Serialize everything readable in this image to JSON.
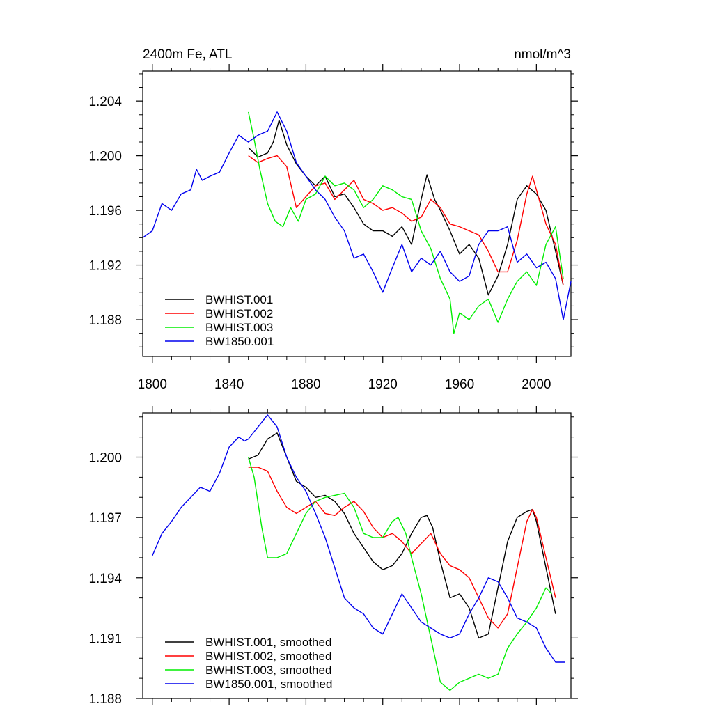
{
  "chart_data": [
    {
      "type": "line",
      "title": "2400m Fe, ATL",
      "units_label": "nmol/m^3",
      "xlim": [
        1795,
        2018
      ],
      "ylim": [
        1.1853,
        1.2062
      ],
      "x_ticks": [
        1800,
        1840,
        1880,
        1920,
        1960,
        2000
      ],
      "x_tick_labels": [
        "1800",
        "1840",
        "1880",
        "1920",
        "1960",
        "2000"
      ],
      "y_ticks": [
        1.188,
        1.192,
        1.196,
        1.2,
        1.204
      ],
      "y_tick_labels": [
        "1.188",
        "1.192",
        "1.196",
        "1.200",
        "1.204"
      ],
      "legend_placement": "bottom-left",
      "series": [
        {
          "name": "BWHIST.001",
          "color": "#000000",
          "x": [
            1850,
            1855,
            1860,
            1863,
            1866,
            1870,
            1875,
            1880,
            1885,
            1890,
            1895,
            1900,
            1905,
            1910,
            1915,
            1920,
            1925,
            1930,
            1935,
            1940,
            1943,
            1947,
            1950,
            1955,
            1960,
            1965,
            1970,
            1975,
            1980,
            1985,
            1990,
            1995,
            2000,
            2005,
            2010,
            2014
          ],
          "y": [
            1.2006,
            1.1999,
            1.2002,
            1.201,
            1.2026,
            1.2008,
            1.1994,
            1.1985,
            1.1978,
            1.1985,
            1.197,
            1.1972,
            1.1962,
            1.195,
            1.1945,
            1.1945,
            1.1941,
            1.1948,
            1.1935,
            1.1968,
            1.1986,
            1.1968,
            1.196,
            1.1945,
            1.1928,
            1.1935,
            1.1925,
            1.1898,
            1.1912,
            1.1935,
            1.1968,
            1.1978,
            1.1972,
            1.196,
            1.193,
            1.1905
          ]
        },
        {
          "name": "BWHIST.002",
          "color": "#ff0000",
          "x": [
            1850,
            1855,
            1860,
            1865,
            1870,
            1875,
            1880,
            1885,
            1890,
            1895,
            1900,
            1905,
            1910,
            1915,
            1920,
            1925,
            1930,
            1935,
            1940,
            1945,
            1950,
            1955,
            1960,
            1965,
            1970,
            1975,
            1980,
            1985,
            1990,
            1995,
            1998,
            2000,
            2005,
            2010,
            2014
          ],
          "y": [
            1.2,
            1.1995,
            1.1998,
            1.2,
            1.1992,
            1.1962,
            1.197,
            1.1978,
            1.198,
            1.1968,
            1.1975,
            1.1982,
            1.1968,
            1.1965,
            1.196,
            1.1962,
            1.1958,
            1.1952,
            1.1955,
            1.1968,
            1.1962,
            1.195,
            1.1948,
            1.1945,
            1.1942,
            1.193,
            1.1915,
            1.1915,
            1.1938,
            1.1972,
            1.1985,
            1.1975,
            1.195,
            1.1935,
            1.1905
          ]
        },
        {
          "name": "BWHIST.003",
          "color": "#00ee00",
          "x": [
            1850,
            1853,
            1856,
            1860,
            1864,
            1868,
            1872,
            1876,
            1880,
            1885,
            1890,
            1895,
            1900,
            1905,
            1910,
            1915,
            1920,
            1925,
            1930,
            1935,
            1940,
            1945,
            1950,
            1955,
            1957,
            1960,
            1965,
            1970,
            1975,
            1980,
            1985,
            1990,
            1995,
            2000,
            2005,
            2010,
            2014
          ],
          "y": [
            1.2032,
            1.2012,
            1.199,
            1.1965,
            1.1952,
            1.1948,
            1.1962,
            1.1952,
            1.1968,
            1.1972,
            1.1985,
            1.1978,
            1.198,
            1.1975,
            1.1962,
            1.1968,
            1.1978,
            1.1975,
            1.197,
            1.1968,
            1.1945,
            1.1932,
            1.191,
            1.1895,
            1.187,
            1.1885,
            1.188,
            1.189,
            1.1895,
            1.1878,
            1.1895,
            1.1908,
            1.1915,
            1.1905,
            1.1935,
            1.1948,
            1.191
          ]
        },
        {
          "name": "BW1850.001",
          "color": "#0000ee",
          "x": [
            1795,
            1800,
            1805,
            1810,
            1815,
            1820,
            1823,
            1826,
            1830,
            1835,
            1840,
            1845,
            1850,
            1855,
            1860,
            1865,
            1870,
            1875,
            1880,
            1885,
            1890,
            1895,
            1900,
            1905,
            1910,
            1915,
            1920,
            1925,
            1930,
            1935,
            1940,
            1945,
            1950,
            1955,
            1960,
            1965,
            1970,
            1975,
            1980,
            1985,
            1990,
            1995,
            2000,
            2005,
            2010,
            2014,
            2018
          ],
          "y": [
            1.194,
            1.1945,
            1.1965,
            1.196,
            1.1972,
            1.1975,
            1.199,
            1.1982,
            1.1985,
            1.1988,
            1.2002,
            1.2015,
            1.201,
            1.2015,
            1.2018,
            1.2032,
            1.2018,
            1.1995,
            1.1985,
            1.1975,
            1.1968,
            1.1955,
            1.1945,
            1.1925,
            1.1928,
            1.1915,
            1.19,
            1.1918,
            1.1935,
            1.1915,
            1.1925,
            1.192,
            1.193,
            1.1915,
            1.1908,
            1.1912,
            1.1935,
            1.1945,
            1.1945,
            1.1948,
            1.1922,
            1.1928,
            1.1918,
            1.1922,
            1.191,
            1.188,
            1.1908
          ]
        }
      ]
    },
    {
      "type": "line",
      "xlim": [
        1795,
        2018
      ],
      "ylim": [
        1.188,
        1.2022
      ],
      "x_ticks": [
        1800,
        1840,
        1880,
        1920,
        1960,
        2000
      ],
      "y_ticks": [
        1.188,
        1.191,
        1.194,
        1.197,
        1.2
      ],
      "y_tick_labels": [
        "1.188",
        "1.191",
        "1.194",
        "1.197",
        "1.200"
      ],
      "legend_placement": "bottom-left",
      "series": [
        {
          "name": "BWHIST.001, smoothed",
          "color": "#000000",
          "x": [
            1850,
            1855,
            1860,
            1865,
            1870,
            1875,
            1880,
            1885,
            1890,
            1895,
            1900,
            1905,
            1910,
            1915,
            1920,
            1925,
            1930,
            1935,
            1940,
            1943,
            1946,
            1950,
            1955,
            1960,
            1965,
            1970,
            1975,
            1980,
            1985,
            1990,
            1995,
            1998,
            2000,
            2005,
            2010
          ],
          "y": [
            1.1999,
            1.2001,
            1.2009,
            1.2012,
            1.2,
            1.1988,
            1.1985,
            1.198,
            1.1981,
            1.1978,
            1.1972,
            1.1962,
            1.1955,
            1.1948,
            1.1944,
            1.1946,
            1.1952,
            1.1962,
            1.197,
            1.1971,
            1.1965,
            1.1948,
            1.193,
            1.1932,
            1.1925,
            1.191,
            1.1912,
            1.1935,
            1.1958,
            1.197,
            1.1973,
            1.1974,
            1.1968,
            1.1945,
            1.1922
          ]
        },
        {
          "name": "BWHIST.002, smoothed",
          "color": "#ff0000",
          "x": [
            1850,
            1855,
            1860,
            1865,
            1870,
            1875,
            1880,
            1885,
            1890,
            1895,
            1900,
            1905,
            1910,
            1915,
            1920,
            1925,
            1930,
            1935,
            1940,
            1945,
            1950,
            1955,
            1960,
            1965,
            1970,
            1975,
            1980,
            1985,
            1990,
            1995,
            1998,
            2000,
            2005,
            2010
          ],
          "y": [
            1.1995,
            1.1995,
            1.1993,
            1.1983,
            1.1975,
            1.1972,
            1.1975,
            1.1978,
            1.1972,
            1.1971,
            1.1975,
            1.1978,
            1.1973,
            1.1965,
            1.196,
            1.1962,
            1.1958,
            1.1952,
            1.1957,
            1.1962,
            1.1952,
            1.1946,
            1.1944,
            1.194,
            1.193,
            1.192,
            1.1915,
            1.1922,
            1.1945,
            1.1968,
            1.1974,
            1.197,
            1.195,
            1.193
          ]
        },
        {
          "name": "BWHIST.003, smoothed",
          "color": "#00ee00",
          "x": [
            1850,
            1853,
            1857,
            1860,
            1865,
            1870,
            1875,
            1880,
            1885,
            1890,
            1895,
            1900,
            1905,
            1910,
            1915,
            1920,
            1925,
            1928,
            1932,
            1935,
            1940,
            1945,
            1950,
            1955,
            1960,
            1965,
            1970,
            1975,
            1980,
            1985,
            1990,
            1995,
            2000,
            2005,
            2008
          ],
          "y": [
            1.2,
            1.199,
            1.1965,
            1.195,
            1.195,
            1.1952,
            1.1962,
            1.1972,
            1.1978,
            1.198,
            1.1981,
            1.1982,
            1.1975,
            1.1962,
            1.196,
            1.196,
            1.1968,
            1.197,
            1.1962,
            1.195,
            1.1932,
            1.191,
            1.1888,
            1.1884,
            1.1888,
            1.189,
            1.1892,
            1.189,
            1.1892,
            1.1905,
            1.1912,
            1.1918,
            1.1925,
            1.1935,
            1.1932
          ]
        },
        {
          "name": "BW1850.001, smoothed",
          "color": "#0000ee",
          "x": [
            1800,
            1805,
            1810,
            1815,
            1820,
            1825,
            1830,
            1835,
            1840,
            1845,
            1848,
            1850,
            1855,
            1860,
            1865,
            1870,
            1875,
            1880,
            1885,
            1890,
            1895,
            1900,
            1905,
            1910,
            1915,
            1920,
            1925,
            1930,
            1935,
            1940,
            1945,
            1950,
            1955,
            1960,
            1965,
            1970,
            1975,
            1980,
            1985,
            1990,
            1995,
            2000,
            2005,
            2010,
            2015
          ],
          "y": [
            1.1951,
            1.1962,
            1.1968,
            1.1975,
            1.198,
            1.1985,
            1.1983,
            1.1992,
            1.2005,
            1.201,
            1.2008,
            1.2009,
            1.2015,
            1.2021,
            1.2015,
            1.2,
            1.199,
            1.1983,
            1.1972,
            1.196,
            1.1945,
            1.193,
            1.1925,
            1.1922,
            1.1915,
            1.1912,
            1.1922,
            1.1932,
            1.1925,
            1.1918,
            1.1915,
            1.1912,
            1.191,
            1.1912,
            1.1922,
            1.193,
            1.194,
            1.1938,
            1.193,
            1.192,
            1.1918,
            1.1915,
            1.1905,
            1.1898,
            1.1898
          ]
        }
      ]
    }
  ]
}
